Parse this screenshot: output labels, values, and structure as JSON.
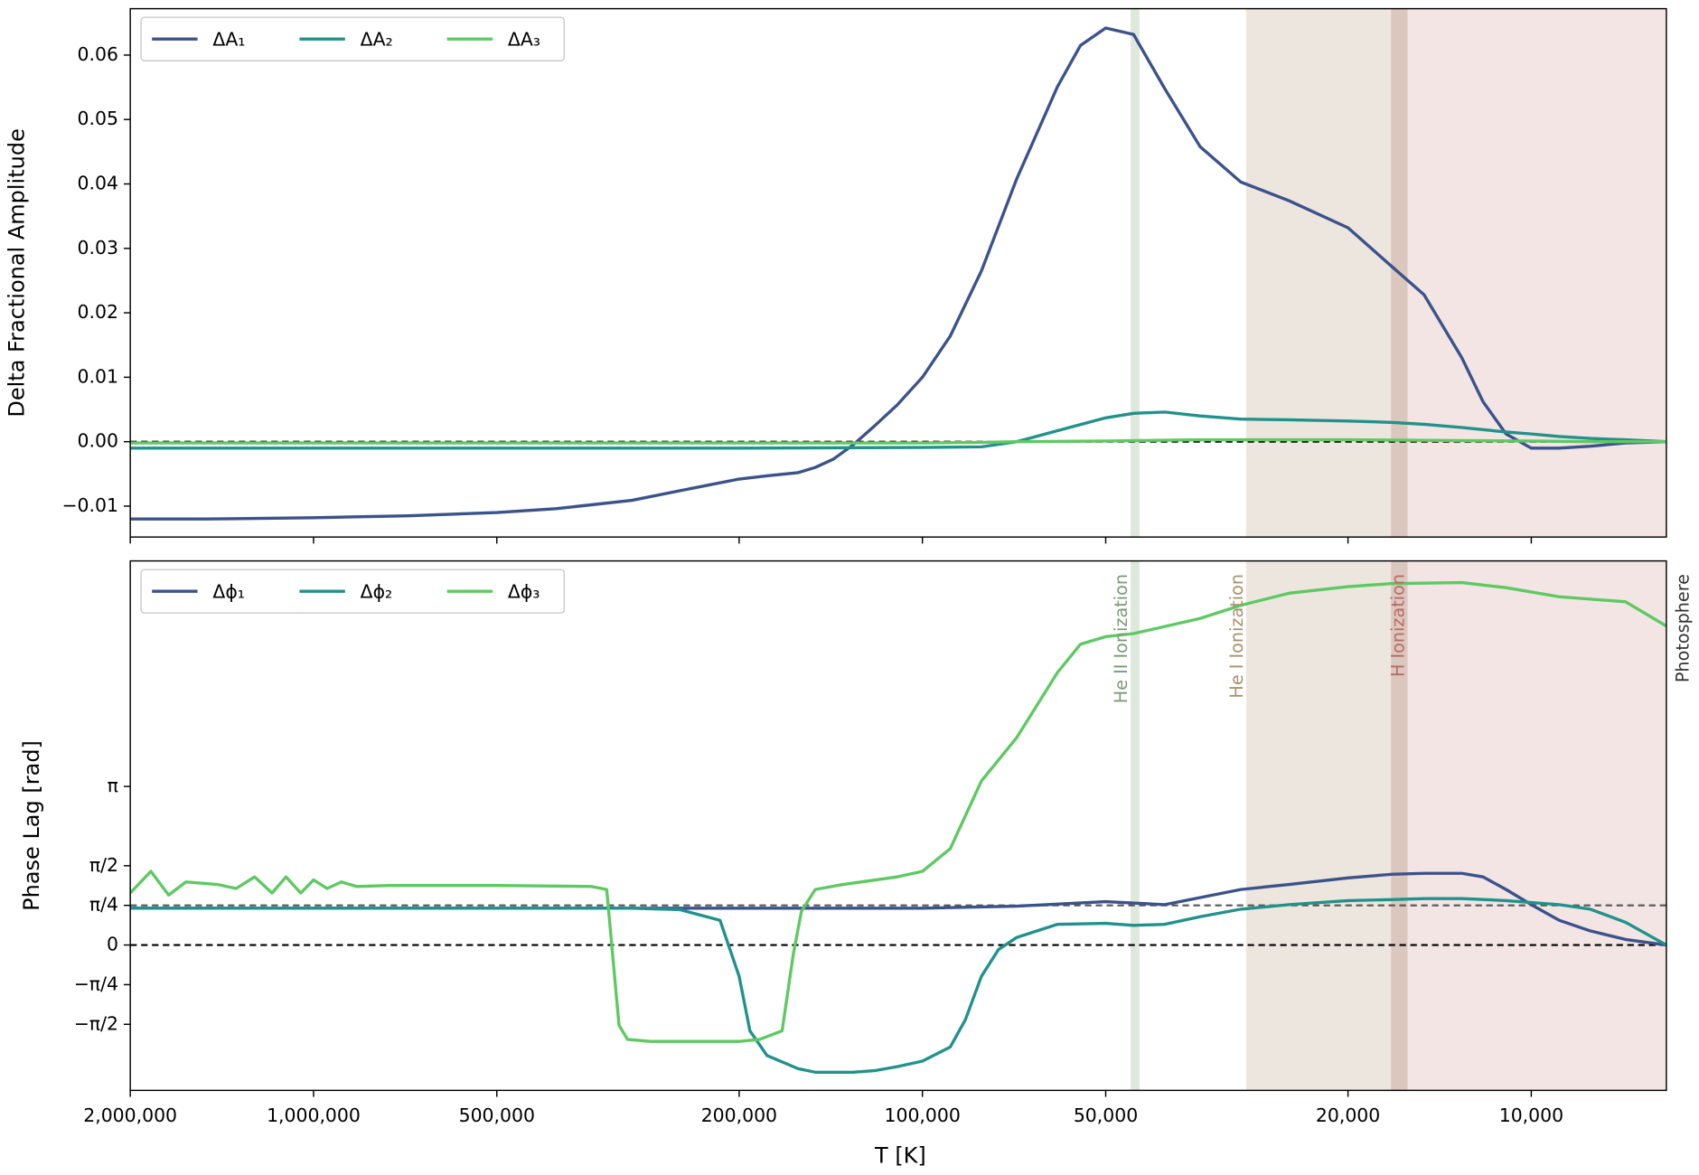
{
  "chart_data": [
    {
      "type": "line",
      "xscale": "log",
      "xlim": [
        2000000,
        6000
      ],
      "xticks": [
        2000000,
        1000000,
        500000,
        200000,
        100000,
        50000,
        20000,
        10000
      ],
      "ylabel": "Delta Fractional Amplitude",
      "ylim": [
        -0.0148,
        0.0672
      ],
      "yticks": [
        {
          "value": -0.01,
          "label": "−0.01"
        },
        {
          "value": 0,
          "label": "0.00"
        },
        {
          "value": 0.01,
          "label": "0.01"
        },
        {
          "value": 0.02,
          "label": "0.02"
        },
        {
          "value": 0.03,
          "label": "0.03"
        },
        {
          "value": 0.04,
          "label": "0.04"
        },
        {
          "value": 0.05,
          "label": "0.05"
        },
        {
          "value": 0.06,
          "label": "0.06"
        }
      ],
      "legend": "upper left",
      "hlines": [
        {
          "value": 0,
          "color": "#000000"
        }
      ],
      "regions": [
        {
          "range": [
            45500,
            44000
          ],
          "color": "#dfe8dc"
        },
        {
          "range": [
            29400,
            17000
          ],
          "color": "#ede6de"
        },
        {
          "range": [
            17000,
            15960
          ],
          "color": "#dcc7bf"
        },
        {
          "range": [
            15960,
            6000
          ],
          "color": "#f2e5e3"
        }
      ],
      "series": [
        {
          "name": "ΔA₁",
          "color": "#3b528b",
          "x": [
            2000000,
            1500000,
            1000000,
            700000,
            500000,
            400000,
            300000,
            250000,
            200000,
            180000,
            160000,
            150000,
            140000,
            130000,
            120000,
            110000,
            100000,
            90000,
            80000,
            70000,
            60000,
            55000,
            50000,
            45000,
            40000,
            35000,
            30000,
            25000,
            20000,
            17000,
            15000,
            13000,
            12000,
            11000,
            10000,
            9000,
            8000,
            7000,
            6000
          ],
          "values": [
            -0.012,
            -0.012,
            -0.0118,
            -0.0115,
            -0.011,
            -0.0104,
            -0.0091,
            -0.0076,
            -0.0058,
            -0.0053,
            -0.0048,
            -0.004,
            -0.0027,
            -0.0005,
            0.0024,
            0.0057,
            0.01,
            0.0164,
            0.0265,
            0.0408,
            0.0551,
            0.0615,
            0.0642,
            0.0632,
            0.0548,
            0.0458,
            0.0403,
            0.0374,
            0.0332,
            0.0273,
            0.0228,
            0.013,
            0.0062,
            0.0012,
            -0.001,
            -0.001,
            -0.0007,
            -0.0002,
            0
          ]
        },
        {
          "name": "ΔA₂",
          "color": "#21918c",
          "x": [
            2000000,
            1000000,
            500000,
            200000,
            100000,
            80000,
            70000,
            60000,
            50000,
            45000,
            40000,
            35000,
            30000,
            25000,
            20000,
            17000,
            15000,
            13000,
            11000,
            10000,
            9000,
            8000,
            7000,
            6000
          ],
          "values": [
            -0.001,
            -0.001,
            -0.001,
            -0.001,
            -0.0009,
            -0.0008,
            0,
            0.0017,
            0.0037,
            0.0044,
            0.0046,
            0.004,
            0.0035,
            0.0034,
            0.0032,
            0.003,
            0.0027,
            0.0022,
            0.0015,
            0.0012,
            0.0008,
            0.0005,
            0.0003,
            0
          ]
        },
        {
          "name": "ΔA₃",
          "color": "#5ec962",
          "x": [
            2000000,
            1000000,
            500000,
            200000,
            100000,
            80000,
            70000,
            50000,
            35000,
            25000,
            20000,
            15000,
            10000,
            8000,
            6000
          ],
          "values": [
            -0.0002,
            -0.0002,
            -0.0002,
            -0.0002,
            -0.0002,
            -0.0001,
            0,
            0.0001,
            0.0003,
            0.0003,
            0.0003,
            0.0002,
            0.0001,
            0,
            0
          ]
        }
      ]
    },
    {
      "type": "line",
      "xscale": "log",
      "xlim": [
        2000000,
        6000
      ],
      "xticks": [
        {
          "value": 2000000,
          "label": "2,000,000"
        },
        {
          "value": 1000000,
          "label": "1,000,000"
        },
        {
          "value": 500000,
          "label": "500,000"
        },
        {
          "value": 200000,
          "label": "200,000"
        },
        {
          "value": 100000,
          "label": "100,000"
        },
        {
          "value": 50000,
          "label": "50,000"
        },
        {
          "value": 20000,
          "label": "20,000"
        },
        {
          "value": 10000,
          "label": "10,000"
        }
      ],
      "xlabel": "T [K]",
      "ylabel": "Phase Lag [rad]",
      "ylim": [
        -2.88,
        7.61
      ],
      "yticks": [
        {
          "value": -1.570796,
          "label": "−π/2"
        },
        {
          "value": -0.785398,
          "label": "−π/4"
        },
        0,
        {
          "value": 0.785398,
          "label": "π/4"
        },
        {
          "value": 1.570796,
          "label": "π/2"
        },
        {
          "value": 3.141593,
          "label": "π"
        }
      ],
      "legend": "upper left",
      "hlines": [
        {
          "value": 0,
          "color": "#000000"
        },
        {
          "value": 0.785398,
          "color": "#555555"
        }
      ],
      "regions": [
        {
          "range": [
            45500,
            44000
          ],
          "color": "#dfe8dc",
          "label": "He II Ionization",
          "label_color": "#7a9a78"
        },
        {
          "range": [
            29400,
            17000
          ],
          "color": "#ede6de",
          "label": "He I Ionization",
          "label_color": "#a8906e"
        },
        {
          "range": [
            17000,
            15960
          ],
          "color": "#dcc7bf"
        },
        {
          "range": [
            15960,
            6000
          ],
          "color": "#f2e5e3",
          "label": "H Ionization",
          "label_color": "#b86a60"
        }
      ],
      "annotation": "Photosphere",
      "series": [
        {
          "name": "Δϕ₁",
          "color": "#3b528b",
          "x": [
            2000000,
            1000000,
            500000,
            200000,
            100000,
            70000,
            50000,
            40000,
            30000,
            25000,
            20000,
            17000,
            15000,
            13000,
            12000,
            11000,
            10000,
            9000,
            8000,
            7000,
            6000
          ],
          "values": [
            0.73,
            0.73,
            0.73,
            0.73,
            0.73,
            0.77,
            0.86,
            0.8,
            1.1,
            1.2,
            1.33,
            1.4,
            1.42,
            1.42,
            1.35,
            1.1,
            0.8,
            0.49,
            0.28,
            0.11,
            0
          ]
        },
        {
          "name": "Δϕ₂",
          "color": "#21918c",
          "x": [
            2000000,
            1000000,
            500000,
            300000,
            250000,
            215000,
            200000,
            192000,
            180000,
            160000,
            150000,
            130000,
            120000,
            110000,
            100000,
            90000,
            85000,
            80000,
            75000,
            70000,
            60000,
            50000,
            45000,
            40000,
            35000,
            30000,
            25000,
            20000,
            17000,
            15000,
            13000,
            11000,
            9000,
            8000,
            7000,
            6000
          ],
          "values": [
            0.73,
            0.73,
            0.73,
            0.73,
            0.7,
            0.49,
            -0.62,
            -1.7,
            -2.19,
            -2.45,
            -2.52,
            -2.52,
            -2.49,
            -2.41,
            -2.3,
            -2.02,
            -1.48,
            -0.62,
            -0.09,
            0.15,
            0.41,
            0.43,
            0.39,
            0.41,
            0.56,
            0.71,
            0.8,
            0.88,
            0.9,
            0.92,
            0.92,
            0.88,
            0.8,
            0.71,
            0.45,
            0
          ]
        },
        {
          "name": "Δϕ₃",
          "color": "#5ec962",
          "x": [
            2000000,
            1850000,
            1730000,
            1620000,
            1440000,
            1340000,
            1250000,
            1170000,
            1110000,
            1050000,
            1000000,
            950000,
            900000,
            850000,
            750000,
            500000,
            350000,
            330000,
            315000,
            305000,
            280000,
            200000,
            185000,
            170000,
            163000,
            158000,
            150000,
            135000,
            110000,
            100000,
            90000,
            80000,
            70000,
            60000,
            55000,
            50000,
            45000,
            35000,
            30000,
            25000,
            20000,
            17000,
            13000,
            11000,
            9000,
            7000,
            6000
          ],
          "values": [
            1.03,
            1.46,
            0.99,
            1.25,
            1.2,
            1.12,
            1.35,
            1.03,
            1.35,
            1.03,
            1.29,
            1.12,
            1.25,
            1.16,
            1.18,
            1.18,
            1.16,
            1.1,
            -1.59,
            -1.87,
            -1.91,
            -1.91,
            -1.87,
            -1.7,
            -0.19,
            0.67,
            1.1,
            1.2,
            1.35,
            1.46,
            1.91,
            3.25,
            4.11,
            5.4,
            5.96,
            6.11,
            6.17,
            6.47,
            6.73,
            6.97,
            7.1,
            7.16,
            7.18,
            7.08,
            6.9,
            6.8,
            6.32
          ]
        }
      ]
    }
  ]
}
